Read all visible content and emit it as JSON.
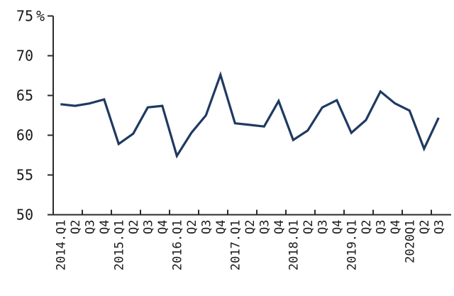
{
  "chart_data": {
    "type": "line",
    "title": "",
    "categories": [
      "2014.Q1",
      "Q2",
      "Q3",
      "Q4",
      "2015.Q1",
      "Q2",
      "Q3",
      "Q4",
      "2016.Q1",
      "Q2",
      "Q3",
      "Q4",
      "2017.Q1",
      "Q2",
      "Q3",
      "Q4",
      "2018.Q1",
      "Q2",
      "Q3",
      "Q4",
      "2019.Q1",
      "Q2",
      "Q3",
      "Q4",
      "2020Q1",
      "Q2",
      "Q3"
    ],
    "values": [
      63.9,
      63.7,
      64.0,
      64.5,
      58.9,
      60.2,
      63.5,
      63.7,
      57.4,
      60.3,
      62.5,
      67.6,
      61.5,
      61.3,
      61.1,
      64.3,
      59.4,
      60.6,
      63.5,
      64.4,
      60.3,
      61.9,
      65.5,
      64.0,
      63.1,
      58.3,
      62.2
    ],
    "xlabel": "",
    "ylabel": "",
    "y_axis": {
      "min": 50,
      "max": 75,
      "ticks": [
        50,
        55,
        60,
        65,
        70,
        75
      ],
      "unit_label": "%"
    },
    "x_tick_interval": 2,
    "grid": "off",
    "legend": "none",
    "colors": {
      "line": "#1f3a60",
      "axis": "#2b2b2b",
      "text": "#1a1a1a",
      "background": "#ffffff"
    }
  }
}
